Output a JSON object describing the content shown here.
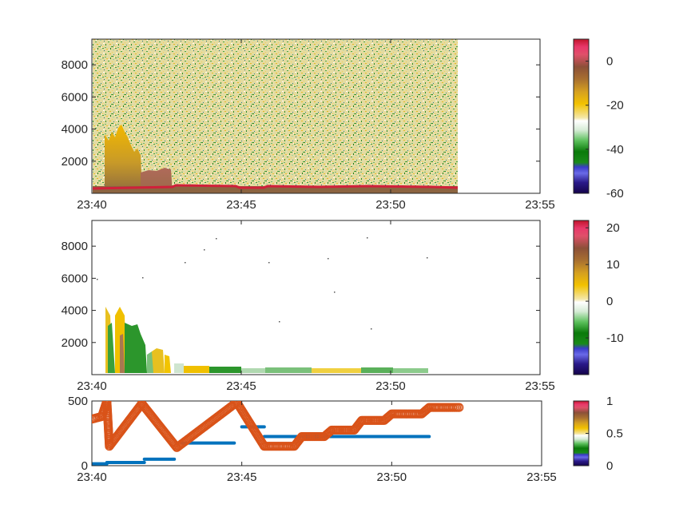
{
  "chart_data": [
    {
      "type": "heatmap",
      "panel": "top",
      "x_ticks": [
        "23:40",
        "23:45",
        "23:50",
        "23:55"
      ],
      "xlim": [
        "23:40",
        "23:55"
      ],
      "y_ticks": [
        2000,
        4000,
        6000,
        8000
      ],
      "ylim": [
        0,
        9600
      ],
      "data_extent_x": [
        "23:40",
        "23:52:15"
      ],
      "colorbar": {
        "ticks": [
          0,
          -20,
          -40,
          -60
        ],
        "range": [
          -60,
          10
        ]
      },
      "features": [
        {
          "name": "noise field",
          "x": [
            "23:40",
            "23:52:15"
          ],
          "y": [
            0,
            9600
          ],
          "value": "approx -20 (speckled yellow/green)"
        },
        {
          "name": "tall plume",
          "x": [
            "23:40:30",
            "23:41:45"
          ],
          "y_top": 4200,
          "value": -18
        },
        {
          "name": "lower plume",
          "x": [
            "23:41:45",
            "23:42:45"
          ],
          "y_top": 1500,
          "value": -10
        },
        {
          "name": "surface band",
          "x": [
            "23:40",
            "23:52:15"
          ],
          "y_top": 300,
          "value": 8
        }
      ]
    },
    {
      "type": "heatmap",
      "panel": "middle",
      "x_ticks": [
        "23:40",
        "23:45",
        "23:50",
        "23:55"
      ],
      "xlim": [
        "23:40",
        "23:55"
      ],
      "y_ticks": [
        2000,
        4000,
        6000,
        8000
      ],
      "ylim": [
        0,
        9600
      ],
      "colorbar": {
        "ticks": [
          20,
          10,
          0,
          -10
        ],
        "range": [
          -20,
          22
        ]
      },
      "features": [
        {
          "x": [
            "23:40:30",
            "23:41:15"
          ],
          "y_top": 4200,
          "value": 5
        },
        {
          "x": [
            "23:41:15",
            "23:42:00"
          ],
          "y_top": 3200,
          "value": -6
        },
        {
          "x": [
            "23:42:00",
            "23:43:00"
          ],
          "y_top": 1600,
          "value": 2
        },
        {
          "x": [
            "23:43:00",
            "23:51:15"
          ],
          "y_top": 350,
          "value": -4
        }
      ]
    },
    {
      "type": "line",
      "panel": "bottom",
      "x_ticks": [
        "23:40",
        "23:45",
        "23:50",
        "23:55"
      ],
      "xlim": [
        "23:40",
        "23:55"
      ],
      "y_ticks": [
        0,
        500
      ],
      "ylim": [
        0,
        500
      ],
      "colorbar": {
        "ticks": [
          1,
          0.5,
          0
        ],
        "range": [
          0,
          1
        ]
      },
      "series": [
        {
          "style": "step",
          "color": "#0072BD",
          "segments": [
            {
              "x": [
                "23:40:00",
                "23:40:30"
              ],
              "y": 15
            },
            {
              "x": [
                "23:40:30",
                "23:41:45"
              ],
              "y": 25
            },
            {
              "x": [
                "23:41:45",
                "23:42:45"
              ],
              "y": 50
            },
            {
              "x": [
                "23:43:00",
                "23:44:45"
              ],
              "y": 175
            },
            {
              "x": [
                "23:45:00",
                "23:45:45"
              ],
              "y": 300
            },
            {
              "x": [
                "23:45:45",
                "23:48:30"
              ],
              "y": 225
            },
            {
              "x": [
                "23:48:30",
                "23:51:15"
              ],
              "y": 225
            }
          ]
        },
        {
          "style": "circles",
          "color": "#D95319",
          "points": [
            [
              "23:40:00",
              360
            ],
            [
              "23:40:20",
              380
            ],
            [
              "23:40:30",
              500
            ],
            [
              "23:40:35",
              150
            ],
            [
              "23:41:40",
              480
            ],
            [
              "23:42:50",
              140
            ],
            [
              "23:44:50",
              490
            ],
            [
              "23:45:45",
              150
            ],
            [
              "23:46:45",
              150
            ],
            [
              "23:47:00",
              225
            ],
            [
              "23:47:45",
              225
            ],
            [
              "23:48:00",
              275
            ],
            [
              "23:48:45",
              275
            ],
            [
              "23:49:00",
              350
            ],
            [
              "23:49:45",
              350
            ],
            [
              "23:50:00",
              400
            ],
            [
              "23:51:00",
              400
            ],
            [
              "23:51:15",
              450
            ],
            [
              "23:52:15",
              450
            ]
          ]
        }
      ]
    }
  ]
}
